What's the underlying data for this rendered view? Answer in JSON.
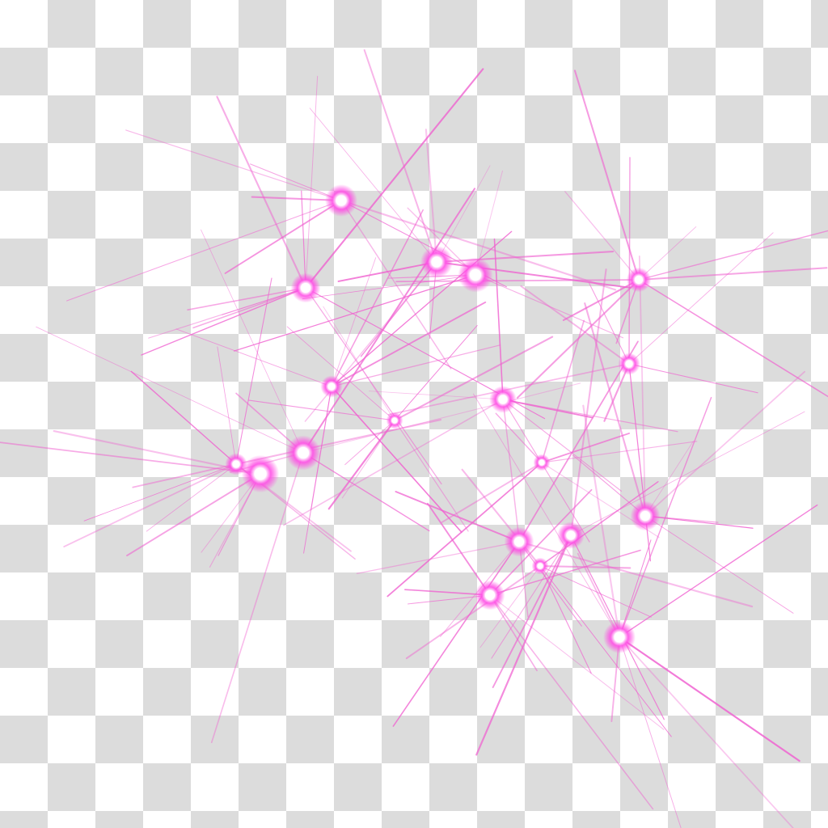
{
  "image": {
    "subject": "pink-star-sparkles",
    "background": "transparency-checkerboard"
  },
  "colors": {
    "ray": "#f060d0",
    "glow": "#ff40e0",
    "core": "#ffffff",
    "checker_light": "#ffffff",
    "checker_dark": "#dcdcdc"
  }
}
